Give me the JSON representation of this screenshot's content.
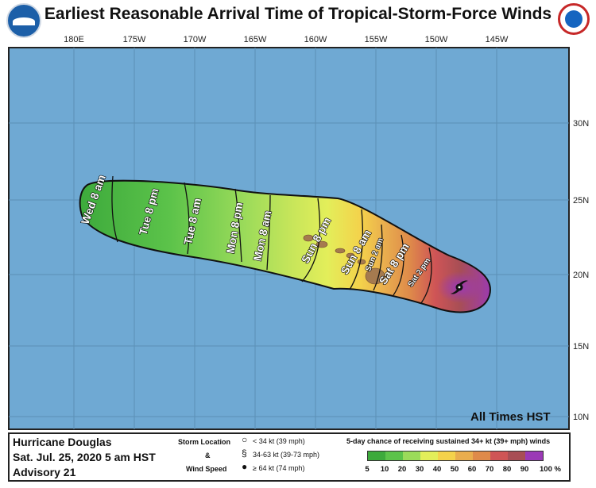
{
  "header": {
    "title": "Earliest Reasonable Arrival Time of Tropical-Storm-Force Winds"
  },
  "logos": {
    "left": "NOAA",
    "right": "NATIONAL WEATHER SERVICE"
  },
  "map": {
    "lon_labels": [
      "180E",
      "175W",
      "170W",
      "165W",
      "160W",
      "155W",
      "150W",
      "145W"
    ],
    "lat_labels": [
      "30N",
      "25N",
      "20N",
      "15N",
      "10N"
    ],
    "ocean_color": "#6fa9d3",
    "land_color": "#a57a4f",
    "arrival_labels": [
      "Wed 8 am",
      "Tue 8 pm",
      "Tue 8 am",
      "Mon 8 pm",
      "Mon 8 am",
      "Sun 8 pm",
      "Sun 8 am",
      "Sun 2 am",
      "Sat 8 pm",
      "Sat 2 pm"
    ],
    "storm_symbol": "hurricane-symbol",
    "timezone_note": "All Times HST"
  },
  "info": {
    "storm_name": "Hurricane Douglas",
    "date": "Sat. Jul. 25, 2020  5 am HST",
    "advisory": "Advisory 21"
  },
  "storm_legend": {
    "label_line1": "Storm Location",
    "label_line2": "&",
    "label_line3": "Wind Speed",
    "entries": [
      "< 34 kt (39 mph)",
      "34-63 kt (39-73 mph)",
      "≥ 64 kt (74 mph)"
    ]
  },
  "probability_legend": {
    "title": "5-day chance of receiving sustained 34+ kt (39+ mph) winds",
    "colors": [
      "#3daa3c",
      "#5cc34a",
      "#9bdb5a",
      "#e3ee5a",
      "#f4d24b",
      "#e9ad4e",
      "#de8a4a",
      "#cf5556",
      "#a84e55",
      "#9b39b6"
    ],
    "ticks": [
      "5",
      "10",
      "20",
      "30",
      "40",
      "50",
      "60",
      "70",
      "80",
      "90",
      "100 %"
    ]
  }
}
